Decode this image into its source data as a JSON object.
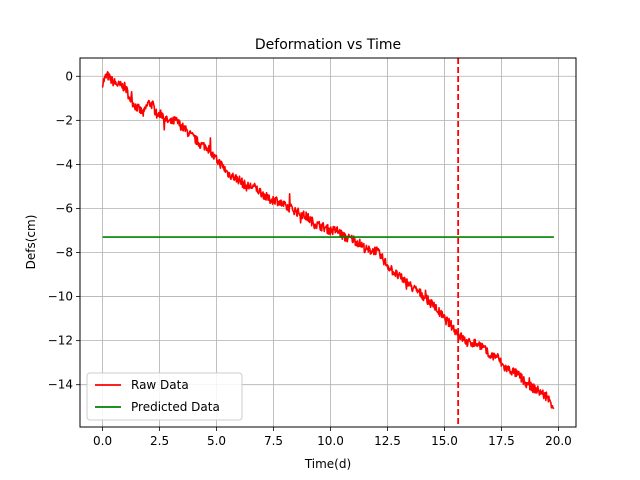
{
  "chart_data": {
    "type": "line",
    "title": "Deformation vs Time",
    "xlabel": "Time(d)",
    "ylabel": "Defs(cm)",
    "xlim": [
      -0.99,
      20.77
    ],
    "ylim": [
      -15.92,
      0.83
    ],
    "xticks": [
      0.0,
      2.5,
      5.0,
      7.5,
      10.0,
      12.5,
      15.0,
      17.5,
      20.0
    ],
    "xtick_labels": [
      "0.0",
      "2.5",
      "5.0",
      "7.5",
      "10.0",
      "12.5",
      "15.0",
      "17.5",
      "20.0"
    ],
    "yticks": [
      0,
      -2,
      -4,
      -6,
      -8,
      -10,
      -12,
      -14
    ],
    "ytick_labels": [
      "0",
      "−2",
      "−4",
      "−6",
      "−8",
      "−10",
      "−12",
      "−14"
    ],
    "grid": true,
    "legend_position": "lower-left",
    "series": [
      {
        "name": "Raw Data",
        "color": "#ff0000",
        "style": "solid",
        "noisy": true,
        "x": [
          0.0,
          0.1,
          0.2,
          0.4,
          0.7,
          1.0,
          1.2,
          1.4,
          1.6,
          1.8,
          2.0,
          2.2,
          2.4,
          2.6,
          2.8,
          3.0,
          3.2,
          3.5,
          3.8,
          4.0,
          4.3,
          4.6,
          4.9,
          5.2,
          5.5,
          5.8,
          6.0,
          6.3,
          6.6,
          7.0,
          7.3,
          7.6,
          8.0,
          8.3,
          8.6,
          9.0,
          9.3,
          9.6,
          10.0,
          10.3,
          10.6,
          11.0,
          11.3,
          11.6,
          12.0,
          12.3,
          12.6,
          13.0,
          13.3,
          13.6,
          14.0,
          14.3,
          14.6,
          15.0,
          15.3,
          15.6,
          16.0,
          16.3,
          16.6,
          17.0,
          17.3,
          17.6,
          18.0,
          18.3,
          18.6,
          19.0,
          19.3,
          19.6,
          19.8
        ],
        "y": [
          -0.3,
          -0.1,
          0.05,
          -0.2,
          -0.4,
          -0.5,
          -1.0,
          -1.3,
          -1.5,
          -1.7,
          -1.2,
          -1.3,
          -1.8,
          -1.7,
          -2.0,
          -2.1,
          -2.0,
          -2.3,
          -2.6,
          -2.8,
          -3.1,
          -3.2,
          -3.7,
          -4.0,
          -4.4,
          -4.6,
          -4.7,
          -5.0,
          -5.0,
          -5.3,
          -5.6,
          -5.6,
          -5.9,
          -6.0,
          -6.2,
          -6.4,
          -6.7,
          -6.8,
          -7.0,
          -7.0,
          -7.3,
          -7.4,
          -7.6,
          -7.9,
          -7.9,
          -8.3,
          -8.7,
          -9.1,
          -9.3,
          -9.6,
          -9.9,
          -10.2,
          -10.5,
          -11.0,
          -11.3,
          -11.7,
          -12.1,
          -12.1,
          -12.2,
          -12.7,
          -12.7,
          -13.2,
          -13.4,
          -13.6,
          -14.0,
          -14.2,
          -14.4,
          -14.7,
          -15.0
        ]
      },
      {
        "name": "Predicted Data",
        "color": "#008000",
        "style": "solid",
        "x": [
          0.0,
          19.8
        ],
        "y": [
          -7.3,
          -7.3
        ]
      }
    ],
    "vlines": [
      {
        "x": 15.6,
        "color": "#ff0000",
        "style": "dashed"
      }
    ]
  }
}
